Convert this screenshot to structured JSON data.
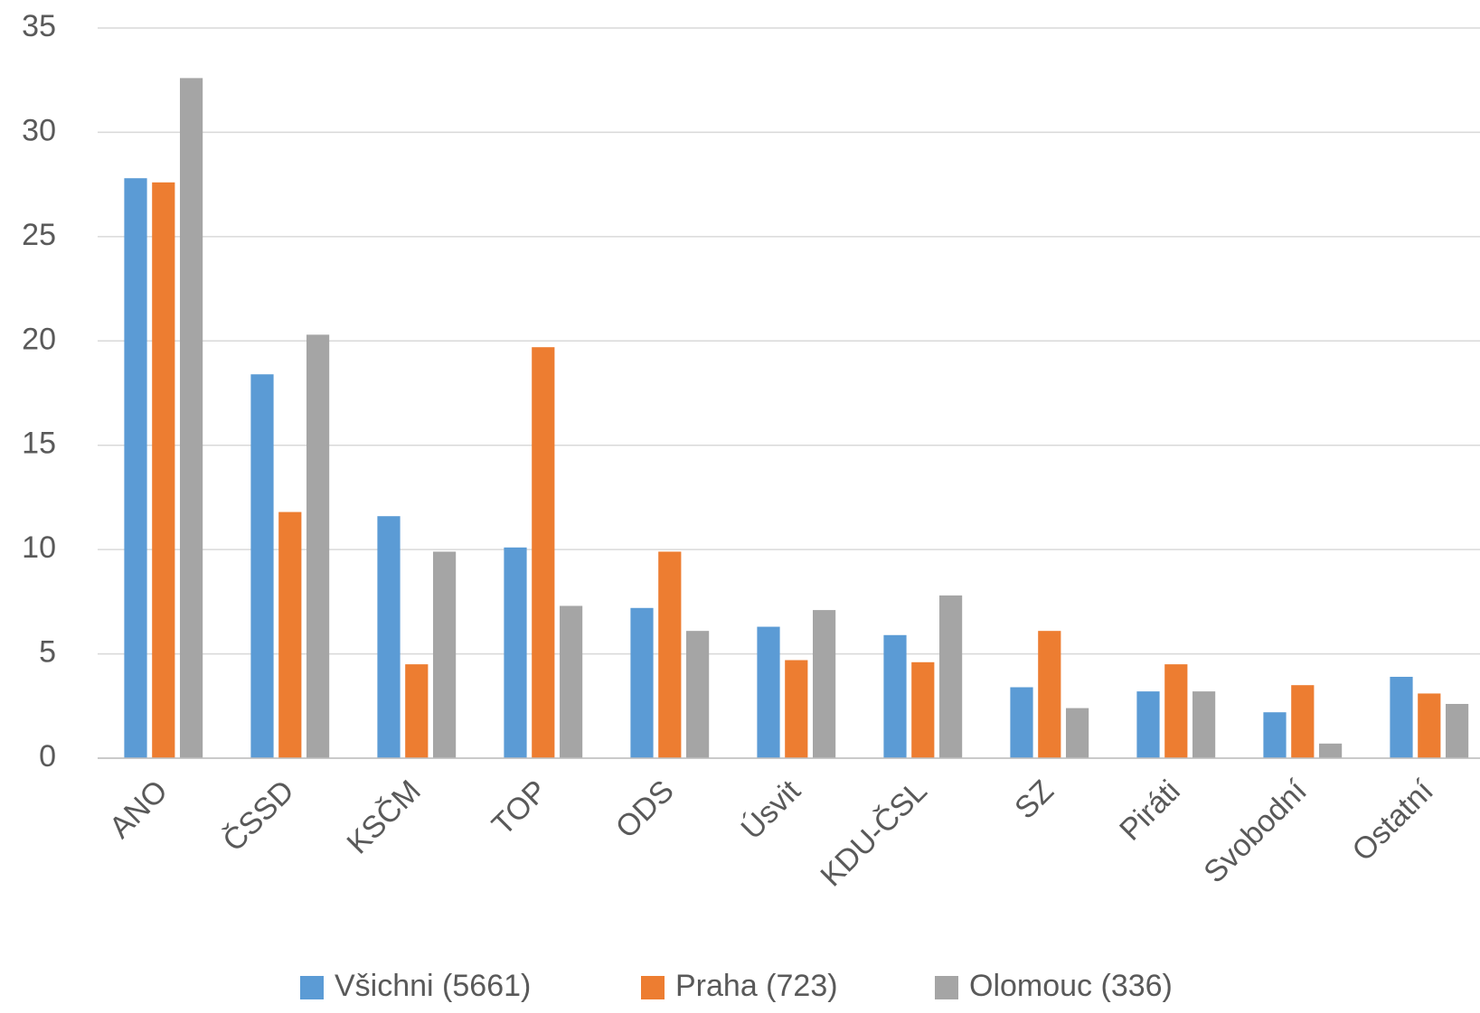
{
  "chart_data": {
    "type": "bar",
    "categories": [
      "ANO",
      "ČSSD",
      "KSČM",
      "TOP",
      "ODS",
      "Úsvit",
      "KDU-ČSL",
      "SZ",
      "Piráti",
      "Svobodní",
      "Ostatní"
    ],
    "series": [
      {
        "name": "Všichni (5661)",
        "color": "#5b9bd5",
        "values": [
          27.8,
          18.4,
          11.6,
          10.1,
          7.2,
          6.3,
          5.9,
          3.4,
          3.2,
          2.2,
          3.9
        ]
      },
      {
        "name": "Praha (723)",
        "color": "#ed7d31",
        "values": [
          27.6,
          11.8,
          4.5,
          19.7,
          9.9,
          4.7,
          4.6,
          6.1,
          4.5,
          3.5,
          3.1
        ]
      },
      {
        "name": "Olomouc (336)",
        "color": "#a5a5a5",
        "values": [
          32.6,
          20.3,
          9.9,
          7.3,
          6.1,
          7.1,
          7.8,
          2.4,
          3.2,
          0.7,
          2.6
        ]
      }
    ],
    "ylim": [
      0,
      35
    ],
    "yticks": [
      0,
      5,
      10,
      15,
      20,
      25,
      30,
      35
    ],
    "grid": true,
    "legend": "bottom"
  }
}
